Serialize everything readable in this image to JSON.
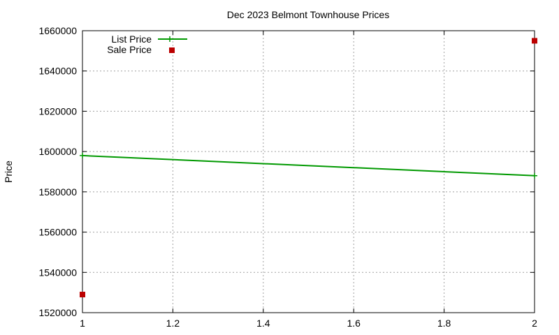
{
  "chart_data": {
    "type": "line",
    "title": "Dec 2023 Belmont Townhouse Prices",
    "ylabel": "Price",
    "xlabel": "",
    "xlim": [
      1,
      2
    ],
    "ylim": [
      1520000,
      1660000
    ],
    "x_ticks": [
      1,
      1.2,
      1.4,
      1.6,
      1.8,
      2
    ],
    "x_tick_labels": [
      "1",
      "1.2",
      "1.4",
      "1.6",
      "1.8",
      "2"
    ],
    "y_ticks": [
      1520000,
      1540000,
      1560000,
      1580000,
      1600000,
      1620000,
      1640000,
      1660000
    ],
    "y_tick_labels": [
      "1520000",
      "1540000",
      "1560000",
      "1580000",
      "1600000",
      "1620000",
      "1640000",
      "1660000"
    ],
    "grid": true,
    "legend_position": "top-left",
    "series": [
      {
        "name": "List Price",
        "style": "linespoints",
        "color": "#009900",
        "points": [
          {
            "x": 1,
            "y": 1598000
          },
          {
            "x": 2,
            "y": 1588000
          }
        ]
      },
      {
        "name": "Sale Price",
        "style": "points",
        "color": "#bb0000",
        "points": [
          {
            "x": 1,
            "y": 1529000
          },
          {
            "x": 2,
            "y": 1655000
          }
        ]
      }
    ]
  }
}
